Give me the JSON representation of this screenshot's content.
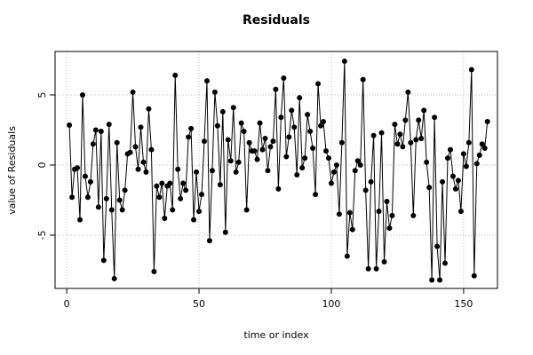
{
  "chart_data": {
    "type": "line",
    "title": "Residuals",
    "xlabel": "time or index",
    "ylabel": "value of Residuals",
    "x": [
      1,
      2,
      3,
      4,
      5,
      6,
      7,
      8,
      9,
      10,
      11,
      12,
      13,
      14,
      15,
      16,
      17,
      18,
      19,
      20,
      21,
      22,
      23,
      24,
      25,
      26,
      27,
      28,
      29,
      30,
      31,
      32,
      33,
      34,
      35,
      36,
      37,
      38,
      39,
      40,
      41,
      42,
      43,
      44,
      45,
      46,
      47,
      48,
      49,
      50,
      51,
      52,
      53,
      54,
      55,
      56,
      57,
      58,
      59,
      60,
      61,
      62,
      63,
      64,
      65,
      66,
      67,
      68,
      69,
      70,
      71,
      72,
      73,
      74,
      75,
      76,
      77,
      78,
      79,
      80,
      81,
      82,
      83,
      84,
      85,
      86,
      87,
      88,
      89,
      90,
      91,
      92,
      93,
      94,
      95,
      96,
      97,
      98,
      99,
      100,
      101,
      102,
      103,
      104,
      105,
      106,
      107,
      108,
      109,
      110,
      111,
      112,
      113,
      114,
      115,
      116,
      117,
      118,
      119,
      120,
      121,
      122,
      123,
      124,
      125,
      126,
      127,
      128,
      129,
      130,
      131,
      132,
      133,
      134,
      135,
      136,
      137,
      138,
      139,
      140,
      141,
      142,
      143,
      144,
      145,
      146,
      147,
      148,
      149,
      150,
      151,
      152,
      153,
      154,
      155,
      156,
      157,
      158,
      159
    ],
    "series": [
      {
        "name": "Residuals",
        "color": "#000000",
        "values": [
          2.85,
          -2.3,
          -0.3,
          -0.2,
          -3.9,
          5.0,
          -0.8,
          -2.3,
          -1.2,
          1.5,
          2.5,
          -3.0,
          2.4,
          -6.8,
          -2.4,
          2.9,
          -3.2,
          -8.1,
          1.6,
          -2.5,
          -3.2,
          -1.8,
          0.8,
          0.9,
          5.2,
          1.3,
          -0.3,
          2.7,
          0.2,
          -0.5,
          4.0,
          1.1,
          -7.6,
          -1.5,
          -2.3,
          -1.3,
          -3.8,
          -1.5,
          -1.3,
          -3.2,
          6.4,
          -0.3,
          -2.4,
          -1.3,
          -1.8,
          2.0,
          2.6,
          -3.9,
          -0.5,
          -3.3,
          -2.1,
          1.7,
          6.0,
          -5.4,
          -0.4,
          5.2,
          2.8,
          -1.4,
          3.8,
          -4.8,
          1.8,
          0.3,
          4.1,
          -0.5,
          0.2,
          3.0,
          2.4,
          -3.2,
          1.6,
          1.0,
          1.0,
          0.4,
          3.0,
          1.1,
          1.9,
          -0.4,
          1.3,
          1.7,
          5.4,
          -1.7,
          3.4,
          6.2,
          0.6,
          2.0,
          3.9,
          2.7,
          -0.7,
          4.8,
          -0.2,
          0.5,
          3.6,
          2.4,
          1.2,
          -2.1,
          5.8,
          2.8,
          3.1,
          1.0,
          0.5,
          -1.3,
          -0.5,
          0.0,
          -3.5,
          1.6,
          7.4,
          -6.5,
          -3.4,
          -4.6,
          -0.4,
          0.3,
          0.0,
          6.1,
          -1.8,
          -7.4,
          -1.2,
          2.1,
          -7.4,
          -3.3,
          2.3,
          -6.9,
          -2.6,
          -4.5,
          -3.6,
          2.9,
          1.5,
          2.2,
          1.3,
          3.2,
          5.2,
          1.6,
          -3.6,
          1.8,
          3.2,
          1.9,
          3.9,
          0.2,
          -1.6,
          -8.2,
          3.4,
          -5.8,
          -8.2,
          -1.2,
          -7.0,
          0.5,
          1.1,
          -0.8,
          -1.7,
          -1.1,
          -3.3,
          0.8,
          -0.1,
          1.6,
          6.8,
          -7.9,
          0.1,
          0.7,
          1.5,
          1.2,
          3.1
        ]
      }
    ],
    "xlim": [
      -4.4,
      162.8
    ],
    "ylim": [
      -8.8,
      8.1
    ],
    "xticks": [
      0,
      50,
      100,
      150
    ],
    "yticks": [
      -5,
      0,
      5
    ],
    "grid": true
  }
}
